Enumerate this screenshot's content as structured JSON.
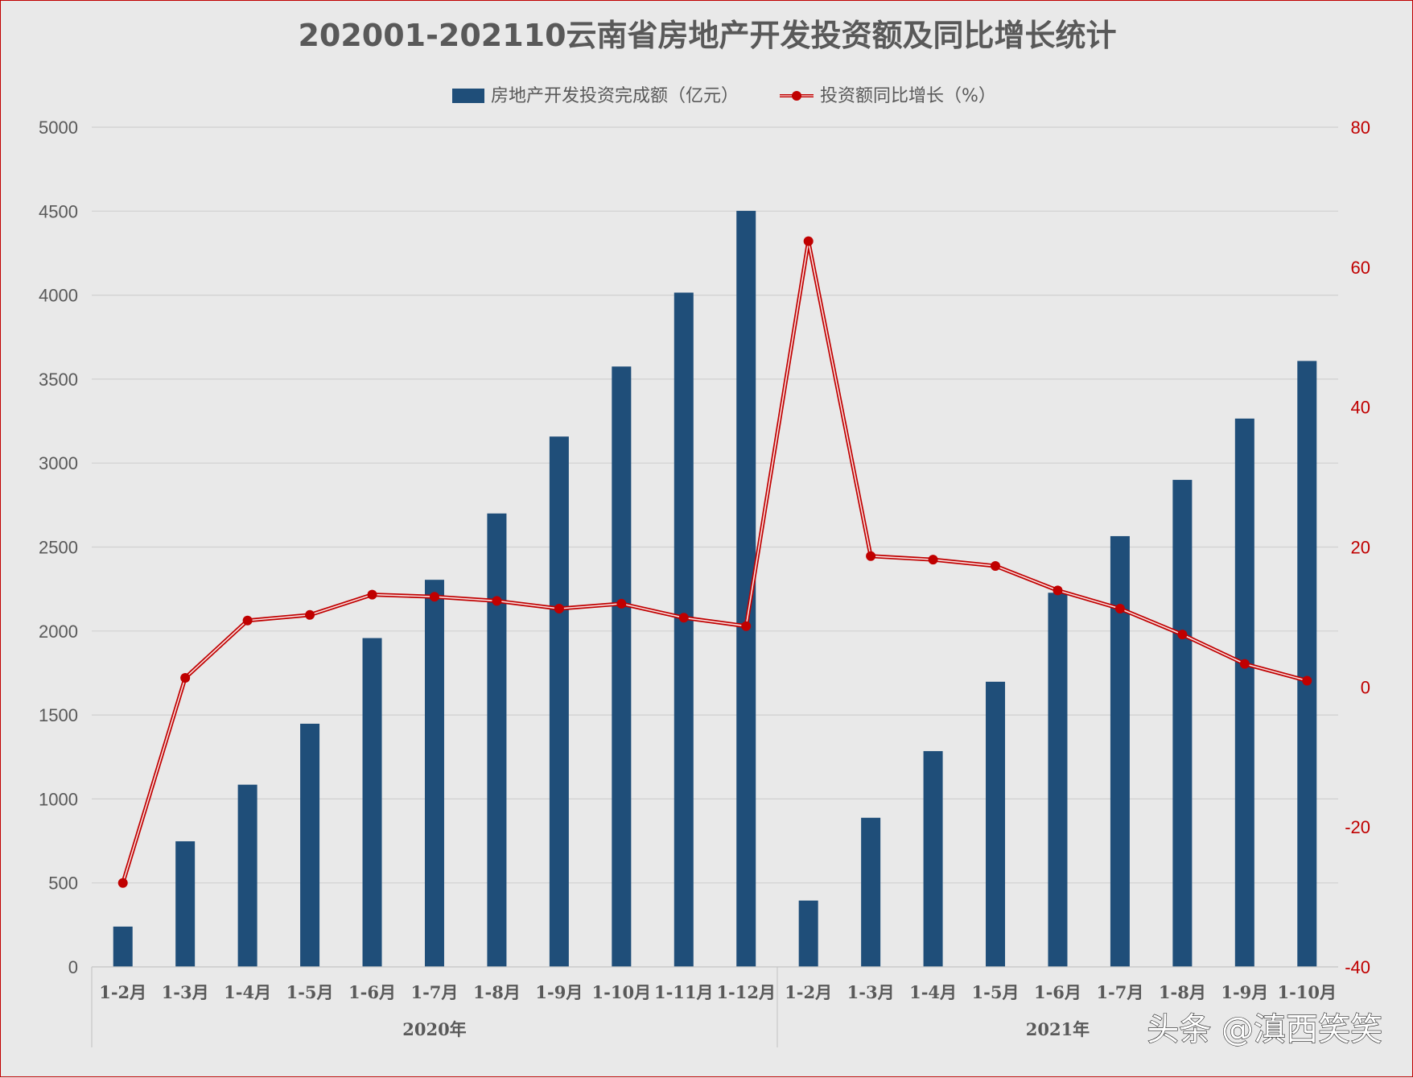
{
  "chart_data": {
    "type": "bar",
    "title": "202001-202110云南省房地产开发投资额及同比增长统计",
    "legend_position": "top",
    "grid": true,
    "categories": [
      "1-2月",
      "1-3月",
      "1-4月",
      "1-5月",
      "1-6月",
      "1-7月",
      "1-8月",
      "1-9月",
      "1-10月",
      "1-11月",
      "1-12月",
      "1-2月",
      "1-3月",
      "1-4月",
      "1-5月",
      "1-6月",
      "1-7月",
      "1-8月",
      "1-9月",
      "1-10月"
    ],
    "category_groups": [
      {
        "label": "2020年",
        "count": 11
      },
      {
        "label": "2021年",
        "count": 9
      }
    ],
    "series": [
      {
        "name": "房地产开发投资完成额（亿元）",
        "type": "bar",
        "axis": "left",
        "color": "#1f4e79",
        "values": [
          240,
          748,
          1085,
          1448,
          1958,
          2305,
          2700,
          3158,
          3575,
          4015,
          4502,
          395,
          888,
          1285,
          1698,
          2228,
          2565,
          2900,
          3265,
          3608
        ]
      },
      {
        "name": "投资额同比增长（%）",
        "type": "line",
        "axis": "right",
        "color": "#c00000",
        "values": [
          -28.0,
          1.3,
          9.5,
          10.3,
          13.2,
          12.9,
          12.3,
          11.2,
          11.9,
          9.9,
          8.7,
          63.7,
          18.7,
          18.2,
          17.3,
          13.8,
          11.2,
          7.5,
          3.3,
          0.9
        ]
      }
    ],
    "y_left": {
      "min": 0,
      "max": 5000,
      "ticks": [
        "0",
        "500",
        "1000",
        "1500",
        "2000",
        "2500",
        "3000",
        "3500",
        "4000",
        "4500",
        "5000"
      ]
    },
    "y_right": {
      "min": -40,
      "max": 80,
      "ticks": [
        "-40",
        "-20",
        "0",
        "20",
        "40",
        "60",
        "80"
      ]
    }
  },
  "watermark": "头条 @滇西笑笑"
}
